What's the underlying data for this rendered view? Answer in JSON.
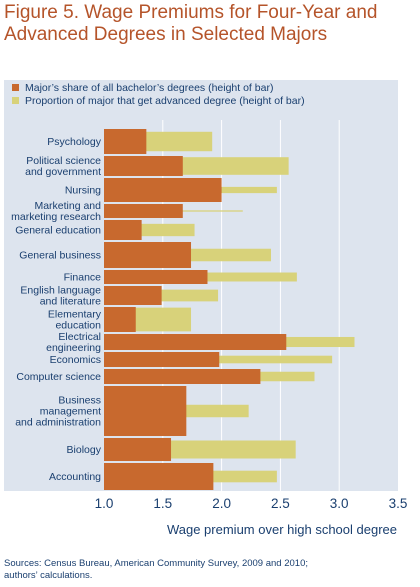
{
  "title_line1": "Figure 5. Wage Premiums for Four-Year and",
  "title_line2": "Advanced Degrees in Selected Majors",
  "source_line1": "Sources: Census Bureau, American Community Survey, 2009 and 2010;",
  "source_line2": "authors’ calculations.",
  "colors": {
    "background": "#dde4ee",
    "share_bar": "#c8692e",
    "advanced_bar": "#d8d27a",
    "grid": "#ffffff",
    "text": "#1a3f6f",
    "title": "#b5542a"
  },
  "chart_data": {
    "type": "bar",
    "orientation": "horizontal",
    "title": "Figure 5. Wage Premiums for Four-Year and Advanced Degrees in Selected Majors",
    "xlabel": "Wage premium over high school degree",
    "ylabel": "",
    "xlim": [
      1.0,
      3.5
    ],
    "xticks": [
      "1.0",
      "1.5",
      "2.0",
      "2.5",
      "3.0",
      "3.5"
    ],
    "grid": true,
    "legend_position": "top",
    "legend": [
      "Major’s share of all bachelor’s degrees (height of bar)",
      "Proportion of major that get advanced degree (height of bar)"
    ],
    "note": "Bar height (thickness) encodes share of degrees and proportion getting advanced degree",
    "categories": [
      [
        "Psychology"
      ],
      [
        "Political science",
        "and government"
      ],
      [
        "Nursing"
      ],
      [
        "Marketing and",
        "marketing research"
      ],
      [
        "General education"
      ],
      [
        "General business"
      ],
      [
        "Finance"
      ],
      [
        "English language",
        "and literature"
      ],
      [
        "Elementary",
        "education"
      ],
      [
        "Electrical",
        "engineering"
      ],
      [
        "Economics"
      ],
      [
        "Computer science"
      ],
      [
        "Business",
        "management",
        "and administration"
      ],
      [
        "Biology"
      ],
      [
        "Accounting"
      ]
    ],
    "series": [
      {
        "name": "Major’s share of all bachelor’s degrees (height of bar)",
        "values": [
          1.36,
          1.67,
          2.0,
          1.67,
          1.32,
          1.74,
          1.88,
          1.49,
          1.27,
          2.55,
          1.98,
          2.33,
          1.7,
          1.57,
          1.93
        ]
      },
      {
        "name": "Proportion of major that get advanced degree (height of bar)",
        "values": [
          1.92,
          2.57,
          2.47,
          2.18,
          1.77,
          2.42,
          2.64,
          1.97,
          1.74,
          3.13,
          2.94,
          2.79,
          2.23,
          2.63,
          2.47
        ]
      }
    ],
    "share_heights": [
      0.025,
      0.02,
      0.03,
      0.015,
      0.015,
      0.03,
      0.01,
      0.02,
      0.01,
      0.02,
      0.01,
      0.02,
      0.08,
      0.025,
      0.03
    ],
    "advanced_proportions": [
      0.45,
      0.5,
      0.15,
      0.05,
      0.35,
      0.28,
      0.35,
      0.35,
      0.55,
      0.35,
      0.28,
      0.35,
      0.15,
      0.45,
      0.25
    ]
  }
}
